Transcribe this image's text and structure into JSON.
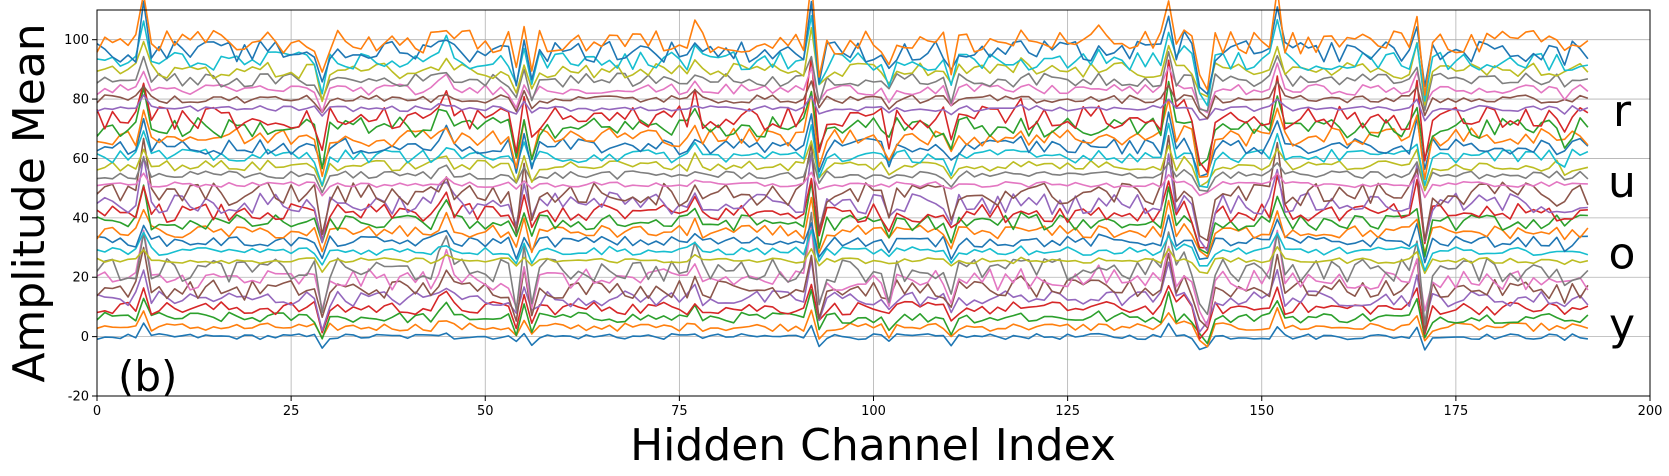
{
  "chart_data": {
    "type": "line",
    "title": "",
    "xlabel": "Hidden Channel Index",
    "ylabel": "Amplitude Mean",
    "xlim": [
      0,
      200
    ],
    "ylim": [
      -20,
      110
    ],
    "xticks": [
      0,
      25,
      50,
      75,
      100,
      125,
      150,
      175,
      200
    ],
    "yticks": [
      -20,
      0,
      20,
      40,
      60,
      80,
      100
    ],
    "grid": true,
    "panel_label": "(b)",
    "x_range_of_series": [
      0,
      192
    ],
    "series_count": 32,
    "series_offset_step": 3.2,
    "group_labels": [
      {
        "text": "r",
        "y": 76
      },
      {
        "text": "u",
        "y": 52
      },
      {
        "text": "o",
        "y": 28
      },
      {
        "text": "y",
        "y": 4
      }
    ],
    "series_colors": [
      "#1f77b4",
      "#ff7f0e",
      "#2ca02c",
      "#d62728",
      "#9467bd",
      "#8c564b",
      "#e377c2",
      "#7f7f7f",
      "#bcbd22",
      "#17becf"
    ]
  }
}
